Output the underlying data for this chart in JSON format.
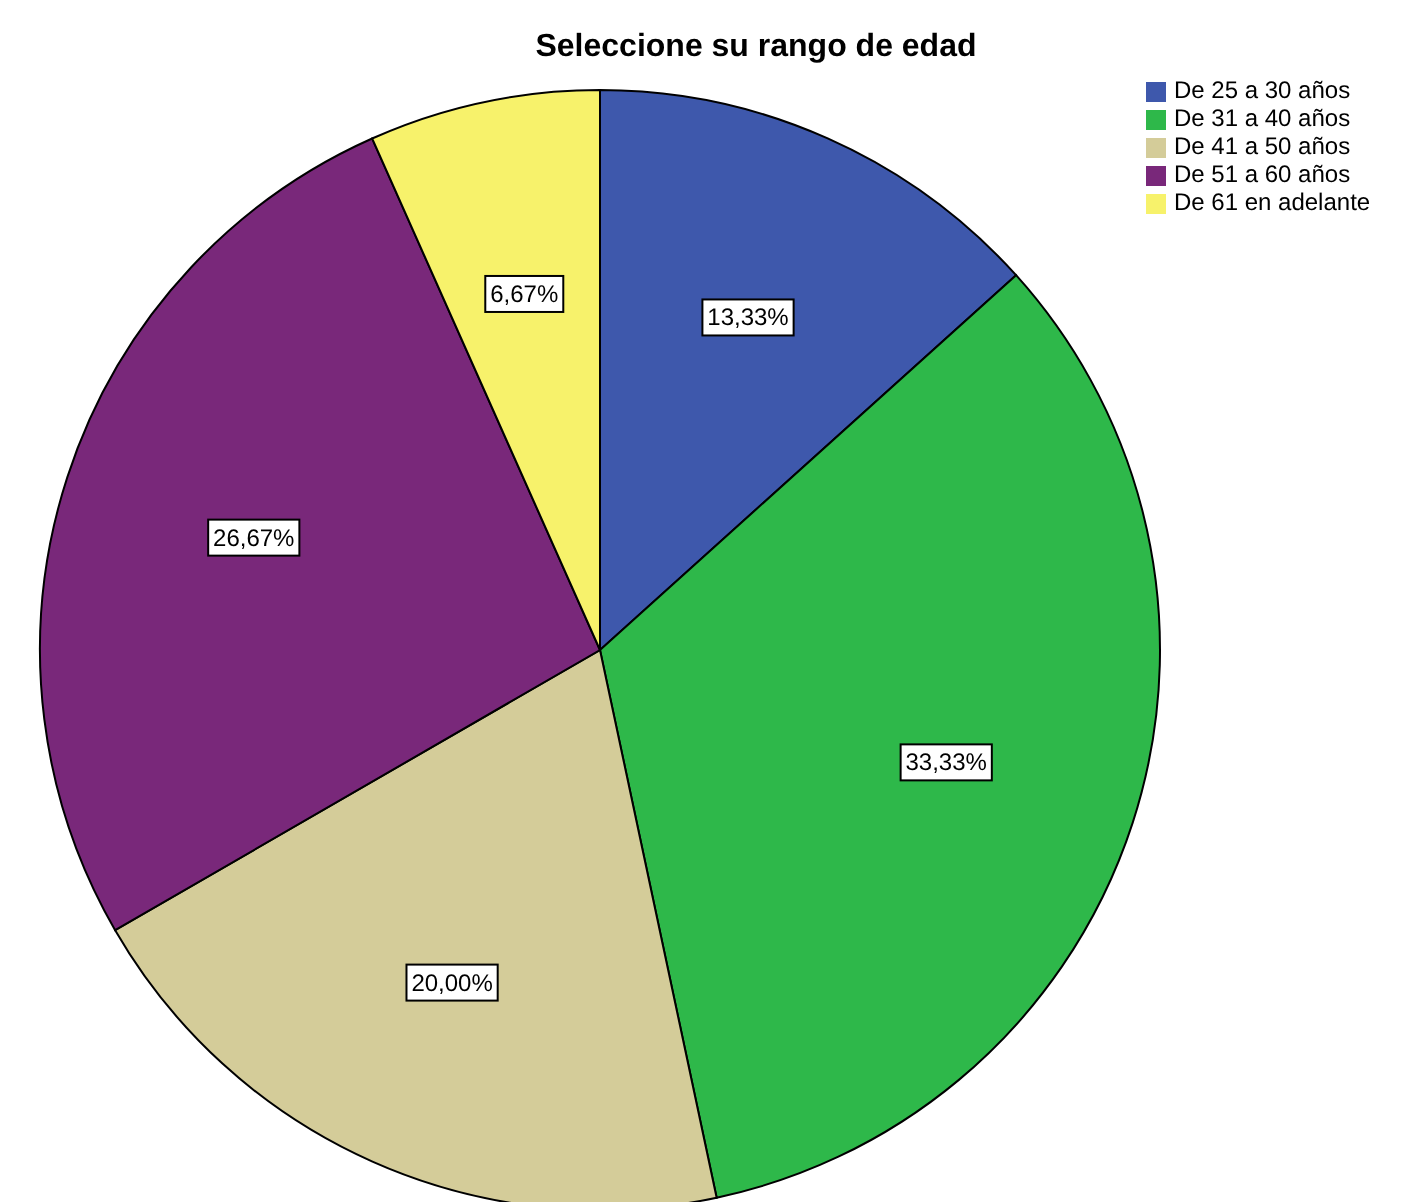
{
  "chart_data": {
    "type": "pie",
    "title": "Seleccione su rango de edad",
    "categories": [
      "De 25 a 30 años",
      "De 31 a 40 años",
      "De 41 a 50 años",
      "De 51 a 60 años",
      "De 61 en adelante"
    ],
    "values": [
      13.33,
      33.33,
      20.0,
      26.67,
      6.67
    ],
    "value_labels": [
      "13,33%",
      "33,33%",
      "20,00%",
      "26,67%",
      "6,67%"
    ],
    "colors": [
      "#3e58ac",
      "#2eb84a",
      "#d4cc99",
      "#79287a",
      "#f7f26b"
    ],
    "legend": "top right"
  }
}
